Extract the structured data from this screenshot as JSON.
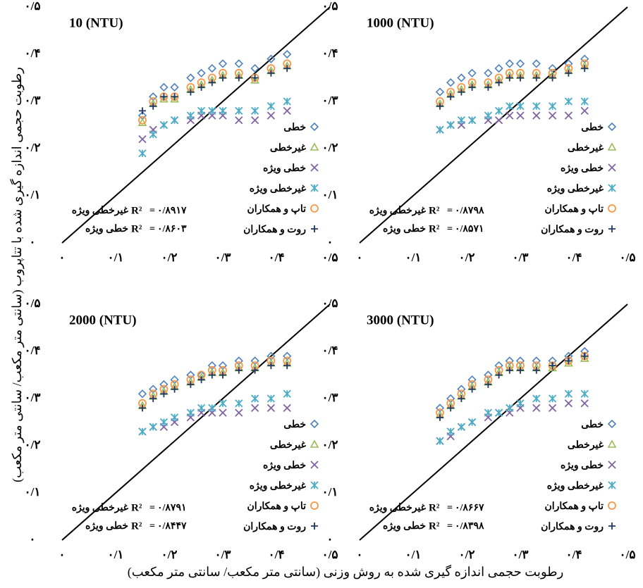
{
  "axis_labels": {
    "y": "رطوبت حجمی اندازه گیری شده با تتاپروب (سانتی متر مکعب/ سانتی متر مکعب)",
    "x": "رطوبت حجمی اندازه گیری شده به روش وزنی (سانتی متر مکعب/ سانتی متر مکعب)"
  },
  "chart_data": [
    {
      "type": "scatter",
      "title": "10 (NTU)",
      "x": [
        0.15,
        0.17,
        0.19,
        0.21,
        0.24,
        0.26,
        0.28,
        0.3,
        0.33,
        0.36,
        0.39,
        0.42
      ],
      "series": [
        {
          "name": "خطی",
          "color": "#4f81bd",
          "marker": "diamond",
          "values": [
            0.27,
            0.31,
            0.33,
            0.33,
            0.35,
            0.36,
            0.37,
            0.38,
            0.38,
            0.37,
            0.39,
            0.4
          ]
        },
        {
          "name": "غیرخطی",
          "color": "#9bbb59",
          "marker": "triangle",
          "values": [
            0.255,
            0.295,
            0.305,
            0.305,
            0.325,
            0.335,
            0.345,
            0.355,
            0.355,
            0.345,
            0.365,
            0.375
          ]
        },
        {
          "name": "خطی ویژه",
          "color": "#8064a2",
          "marker": "x",
          "values": [
            0.22,
            0.24,
            0.25,
            0.26,
            0.26,
            0.27,
            0.27,
            0.27,
            0.26,
            0.26,
            0.27,
            0.28
          ]
        },
        {
          "name": "غیرخطی ویژه",
          "color": "#4bacc6",
          "marker": "star",
          "values": [
            0.19,
            0.23,
            0.25,
            0.26,
            0.27,
            0.28,
            0.28,
            0.28,
            0.28,
            0.28,
            0.29,
            0.3
          ]
        },
        {
          "name": "تاپ و همکاران",
          "color": "#f79646",
          "marker": "circle",
          "values": [
            0.26,
            0.3,
            0.31,
            0.31,
            0.33,
            0.34,
            0.35,
            0.36,
            0.36,
            0.35,
            0.37,
            0.38
          ]
        },
        {
          "name": "روت و همکاران",
          "color": "#1f3864",
          "marker": "plus",
          "values": [
            0.28,
            0.29,
            0.31,
            0.31,
            0.32,
            0.33,
            0.34,
            0.35,
            0.35,
            0.35,
            0.36,
            0.37
          ]
        }
      ],
      "annotations": [
        {
          "name": "غیرخطی ویژه",
          "stat": "R²",
          "sign": "=",
          "value": 0.8917,
          "value_label": "۰/۸۹۱۷"
        },
        {
          "name": "خطی ویژه",
          "stat": "R²",
          "sign": "=",
          "value": 0.8603,
          "value_label": "۰/۸۶۰۳"
        }
      ],
      "xlim": [
        0,
        0.5
      ],
      "ylim": [
        0,
        0.5
      ],
      "xticks": [
        {
          "value": 0,
          "label": "۰"
        },
        {
          "value": 0.1,
          "label": "۰/۱"
        },
        {
          "value": 0.2,
          "label": "۰/۲"
        },
        {
          "value": 0.3,
          "label": "۰/۳"
        },
        {
          "value": 0.4,
          "label": "۰/۴"
        },
        {
          "value": 0.5,
          "label": "۰/۵"
        }
      ],
      "yticks": [
        {
          "value": 0,
          "label": "۰"
        },
        {
          "value": 0.1,
          "label": "۰/۱"
        },
        {
          "value": 0.2,
          "label": "۰/۲"
        },
        {
          "value": 0.3,
          "label": "۰/۳"
        },
        {
          "value": 0.4,
          "label": "۰/۴"
        },
        {
          "value": 0.5,
          "label": "۰/۵"
        }
      ]
    },
    {
      "type": "scatter",
      "title": "1000 (NTU)",
      "x": [
        0.15,
        0.17,
        0.19,
        0.21,
        0.24,
        0.26,
        0.28,
        0.3,
        0.33,
        0.36,
        0.39,
        0.42
      ],
      "series": [
        {
          "name": "خطی",
          "color": "#4f81bd",
          "marker": "diamond",
          "values": [
            0.32,
            0.34,
            0.35,
            0.36,
            0.36,
            0.37,
            0.38,
            0.38,
            0.38,
            0.37,
            0.38,
            0.39
          ]
        },
        {
          "name": "غیرخطی",
          "color": "#9bbb59",
          "marker": "triangle",
          "values": [
            0.295,
            0.315,
            0.325,
            0.335,
            0.335,
            0.345,
            0.355,
            0.355,
            0.355,
            0.355,
            0.365,
            0.375
          ]
        },
        {
          "name": "خطی ویژه",
          "color": "#8064a2",
          "marker": "x",
          "values": [
            0.24,
            0.25,
            0.25,
            0.26,
            0.26,
            0.26,
            0.27,
            0.27,
            0.27,
            0.27,
            0.27,
            0.28
          ]
        },
        {
          "name": "غیرخطی ویژه",
          "color": "#4bacc6",
          "marker": "star",
          "values": [
            0.24,
            0.25,
            0.26,
            0.26,
            0.27,
            0.28,
            0.29,
            0.29,
            0.29,
            0.29,
            0.3,
            0.3
          ]
        },
        {
          "name": "تاپ و همکاران",
          "color": "#f79646",
          "marker": "circle",
          "values": [
            0.3,
            0.32,
            0.33,
            0.34,
            0.34,
            0.35,
            0.36,
            0.36,
            0.36,
            0.36,
            0.37,
            0.38
          ]
        },
        {
          "name": "روت و همکاران",
          "color": "#1f3864",
          "marker": "plus",
          "values": [
            0.29,
            0.31,
            0.32,
            0.33,
            0.33,
            0.34,
            0.35,
            0.35,
            0.35,
            0.35,
            0.36,
            0.37
          ]
        }
      ],
      "annotations": [
        {
          "name": "غیرخطی ویژه",
          "stat": "R²",
          "sign": "=",
          "value": 0.8798,
          "value_label": "۰/۸۷۹۸"
        },
        {
          "name": "خطی ویژه",
          "stat": "R²",
          "sign": "=",
          "value": 0.8571,
          "value_label": "۰/۸۵۷۱"
        }
      ],
      "xlim": [
        0,
        0.5
      ],
      "ylim": [
        0,
        0.5
      ],
      "xticks": [
        {
          "value": 0,
          "label": "۰"
        },
        {
          "value": 0.1,
          "label": "۰/۱"
        },
        {
          "value": 0.2,
          "label": "۰/۲"
        },
        {
          "value": 0.3,
          "label": "۰/۳"
        },
        {
          "value": 0.4,
          "label": "۰/۴"
        },
        {
          "value": 0.5,
          "label": "۰/۵"
        }
      ],
      "yticks": [
        {
          "value": 0,
          "label": "۰"
        },
        {
          "value": 0.1,
          "label": "۰/۱"
        },
        {
          "value": 0.2,
          "label": "۰/۲"
        },
        {
          "value": 0.3,
          "label": "۰/۳"
        },
        {
          "value": 0.4,
          "label": "۰/۴"
        },
        {
          "value": 0.5,
          "label": "۰/۵"
        }
      ]
    },
    {
      "type": "scatter",
      "title": "2000 (NTU)",
      "x": [
        0.15,
        0.17,
        0.19,
        0.21,
        0.24,
        0.26,
        0.28,
        0.3,
        0.33,
        0.36,
        0.39,
        0.42
      ],
      "series": [
        {
          "name": "خطی",
          "color": "#4f81bd",
          "marker": "diamond",
          "values": [
            0.31,
            0.32,
            0.33,
            0.34,
            0.35,
            0.35,
            0.37,
            0.37,
            0.38,
            0.38,
            0.39,
            0.39
          ]
        },
        {
          "name": "غیرخطی",
          "color": "#9bbb59",
          "marker": "triangle",
          "values": [
            0.285,
            0.305,
            0.315,
            0.325,
            0.335,
            0.345,
            0.355,
            0.355,
            0.365,
            0.365,
            0.375,
            0.375
          ]
        },
        {
          "name": "خطی ویژه",
          "color": "#8064a2",
          "marker": "x",
          "values": [
            0.23,
            0.24,
            0.24,
            0.25,
            0.26,
            0.27,
            0.27,
            0.27,
            0.27,
            0.28,
            0.28,
            0.28
          ]
        },
        {
          "name": "غیرخطی ویژه",
          "color": "#4bacc6",
          "marker": "star",
          "values": [
            0.23,
            0.24,
            0.25,
            0.26,
            0.27,
            0.28,
            0.28,
            0.29,
            0.29,
            0.3,
            0.3,
            0.31
          ]
        },
        {
          "name": "تاپ و همکاران",
          "color": "#f79646",
          "marker": "circle",
          "values": [
            0.29,
            0.31,
            0.32,
            0.33,
            0.34,
            0.35,
            0.36,
            0.36,
            0.37,
            0.37,
            0.38,
            0.38
          ]
        },
        {
          "name": "روت و همکاران",
          "color": "#1f3864",
          "marker": "plus",
          "values": [
            0.28,
            0.3,
            0.31,
            0.32,
            0.33,
            0.34,
            0.35,
            0.35,
            0.36,
            0.36,
            0.37,
            0.37
          ]
        }
      ],
      "annotations": [
        {
          "name": "غیرخطی ویژه",
          "stat": "R²",
          "sign": "=",
          "value": 0.8791,
          "value_label": "۰/۸۷۹۱"
        },
        {
          "name": "خطی ویژه",
          "stat": "R²",
          "sign": "=",
          "value": 0.8447,
          "value_label": "۰/۸۴۴۷"
        }
      ],
      "xlim": [
        0,
        0.5
      ],
      "ylim": [
        0,
        0.5
      ],
      "xticks": [
        {
          "value": 0,
          "label": "۰"
        },
        {
          "value": 0.1,
          "label": "۰/۱"
        },
        {
          "value": 0.2,
          "label": "۰/۲"
        },
        {
          "value": 0.3,
          "label": "۰/۳"
        },
        {
          "value": 0.4,
          "label": "۰/۴"
        },
        {
          "value": 0.5,
          "label": "۰/۵"
        }
      ],
      "yticks": [
        {
          "value": 0,
          "label": "۰"
        },
        {
          "value": 0.1,
          "label": "۰/۱"
        },
        {
          "value": 0.2,
          "label": "۰/۲"
        },
        {
          "value": 0.3,
          "label": "۰/۳"
        },
        {
          "value": 0.4,
          "label": "۰/۴"
        },
        {
          "value": 0.5,
          "label": "۰/۵"
        }
      ]
    },
    {
      "type": "scatter",
      "title": "3000 (NTU)",
      "x": [
        0.15,
        0.17,
        0.19,
        0.21,
        0.24,
        0.26,
        0.28,
        0.3,
        0.33,
        0.36,
        0.39,
        0.42
      ],
      "series": [
        {
          "name": "خطی",
          "color": "#4f81bd",
          "marker": "diamond",
          "values": [
            0.28,
            0.3,
            0.32,
            0.34,
            0.35,
            0.37,
            0.38,
            0.38,
            0.38,
            0.38,
            0.39,
            0.4
          ]
        },
        {
          "name": "غیرخطی",
          "color": "#9bbb59",
          "marker": "triangle",
          "values": [
            0.265,
            0.285,
            0.305,
            0.325,
            0.335,
            0.355,
            0.365,
            0.365,
            0.365,
            0.365,
            0.375,
            0.385
          ]
        },
        {
          "name": "خطی ویژه",
          "color": "#8064a2",
          "marker": "x",
          "values": [
            0.21,
            0.22,
            0.24,
            0.25,
            0.26,
            0.27,
            0.27,
            0.28,
            0.28,
            0.28,
            0.29,
            0.29
          ]
        },
        {
          "name": "غیرخطی ویژه",
          "color": "#4bacc6",
          "marker": "star",
          "values": [
            0.21,
            0.23,
            0.24,
            0.25,
            0.27,
            0.27,
            0.28,
            0.29,
            0.3,
            0.3,
            0.31,
            0.31
          ]
        },
        {
          "name": "تاپ و همکاران",
          "color": "#f79646",
          "marker": "circle",
          "values": [
            0.27,
            0.29,
            0.31,
            0.33,
            0.34,
            0.36,
            0.37,
            0.37,
            0.37,
            0.37,
            0.38,
            0.39
          ]
        },
        {
          "name": "روت و همکاران",
          "color": "#1f3864",
          "marker": "plus",
          "values": [
            0.26,
            0.28,
            0.3,
            0.32,
            0.33,
            0.35,
            0.36,
            0.36,
            0.36,
            0.37,
            0.38,
            0.39
          ]
        }
      ],
      "annotations": [
        {
          "name": "غیرخطی ویژه",
          "stat": "R²",
          "sign": "=",
          "value": 0.8667,
          "value_label": "۰/۸۶۶۷"
        },
        {
          "name": "خطی ویژه",
          "stat": "R²",
          "sign": "=",
          "value": 0.8398,
          "value_label": "۰/۸۳۹۸"
        }
      ],
      "xlim": [
        0,
        0.5
      ],
      "ylim": [
        0,
        0.5
      ],
      "xticks": [
        {
          "value": 0,
          "label": "۰"
        },
        {
          "value": 0.1,
          "label": "۰/۱"
        },
        {
          "value": 0.2,
          "label": "۰/۲"
        },
        {
          "value": 0.3,
          "label": "۰/۳"
        },
        {
          "value": 0.4,
          "label": "۰/۴"
        },
        {
          "value": 0.5,
          "label": "۰/۵"
        }
      ],
      "yticks": [
        {
          "value": 0,
          "label": "۰"
        },
        {
          "value": 0.1,
          "label": "۰/۱"
        },
        {
          "value": 0.2,
          "label": "۰/۲"
        },
        {
          "value": 0.3,
          "label": "۰/۳"
        },
        {
          "value": 0.4,
          "label": "۰/۴"
        },
        {
          "value": 0.5,
          "label": "۰/۵"
        }
      ]
    }
  ]
}
